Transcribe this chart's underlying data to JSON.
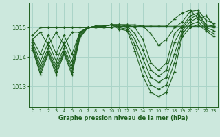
{
  "title": "Graphe pression niveau de la mer (hPa)",
  "bg_color": "#cce8dd",
  "grid_color": "#aad4c8",
  "line_color": "#1e5e1e",
  "hours": [
    0,
    1,
    2,
    3,
    4,
    5,
    6,
    7,
    8,
    9,
    10,
    11,
    12,
    13,
    14,
    15,
    16,
    17,
    18,
    19,
    20,
    21,
    22,
    23
  ],
  "yticks": [
    1013,
    1014,
    1015
  ],
  "ylim": [
    1012.3,
    1015.85
  ],
  "series": [
    [
      1014.75,
      1015.0,
      1015.0,
      1015.0,
      1015.0,
      1015.0,
      1015.0,
      1015.0,
      1015.0,
      1015.0,
      1015.0,
      1015.05,
      1015.05,
      1015.05,
      1015.05,
      1015.05,
      1015.05,
      1015.05,
      1015.05,
      1015.05,
      1015.05,
      1015.05,
      1015.05,
      1015.05
    ],
    [
      1014.6,
      1014.85,
      1014.4,
      1014.85,
      1014.4,
      1014.85,
      1014.85,
      1015.0,
      1015.0,
      1015.0,
      1015.0,
      1015.05,
      1015.05,
      1015.05,
      1015.05,
      1015.05,
      1015.05,
      1015.05,
      1015.3,
      1015.5,
      1015.6,
      1015.3,
      1015.4,
      1015.1
    ],
    [
      1014.6,
      1014.1,
      1014.75,
      1014.1,
      1014.75,
      1014.1,
      1014.85,
      1015.0,
      1015.05,
      1015.05,
      1015.1,
      1015.1,
      1015.1,
      1015.1,
      1015.05,
      1014.8,
      1014.4,
      1014.6,
      1015.0,
      1015.2,
      1015.55,
      1015.6,
      1015.25,
      1015.15
    ],
    [
      1014.5,
      1013.85,
      1014.5,
      1013.85,
      1014.5,
      1013.85,
      1014.85,
      1015.0,
      1015.05,
      1015.05,
      1015.1,
      1015.1,
      1015.1,
      1015.0,
      1014.6,
      1013.8,
      1013.55,
      1013.8,
      1014.8,
      1015.05,
      1015.4,
      1015.5,
      1015.1,
      1015.05
    ],
    [
      1014.4,
      1013.7,
      1014.3,
      1013.7,
      1014.3,
      1013.7,
      1014.8,
      1015.0,
      1015.05,
      1015.05,
      1015.1,
      1015.1,
      1015.05,
      1014.8,
      1014.25,
      1013.55,
      1013.35,
      1013.55,
      1014.5,
      1015.0,
      1015.3,
      1015.45,
      1015.05,
      1015.0
    ],
    [
      1014.35,
      1013.6,
      1014.2,
      1013.6,
      1014.2,
      1013.6,
      1014.75,
      1015.0,
      1015.05,
      1015.05,
      1015.1,
      1015.05,
      1015.0,
      1014.6,
      1013.95,
      1013.3,
      1013.15,
      1013.3,
      1014.1,
      1014.9,
      1015.2,
      1015.35,
      1015.0,
      1014.9
    ],
    [
      1014.3,
      1013.5,
      1014.15,
      1013.5,
      1014.15,
      1013.5,
      1014.7,
      1015.0,
      1015.05,
      1015.05,
      1015.1,
      1015.0,
      1014.95,
      1014.4,
      1013.65,
      1013.05,
      1012.9,
      1013.05,
      1013.8,
      1014.8,
      1015.1,
      1015.2,
      1014.95,
      1014.8
    ],
    [
      1014.25,
      1013.4,
      1014.1,
      1013.4,
      1014.1,
      1013.4,
      1014.65,
      1015.0,
      1015.05,
      1015.05,
      1015.1,
      1014.95,
      1014.9,
      1014.2,
      1013.35,
      1012.8,
      1012.65,
      1012.8,
      1013.5,
      1014.7,
      1015.0,
      1015.1,
      1014.9,
      1014.7
    ]
  ]
}
